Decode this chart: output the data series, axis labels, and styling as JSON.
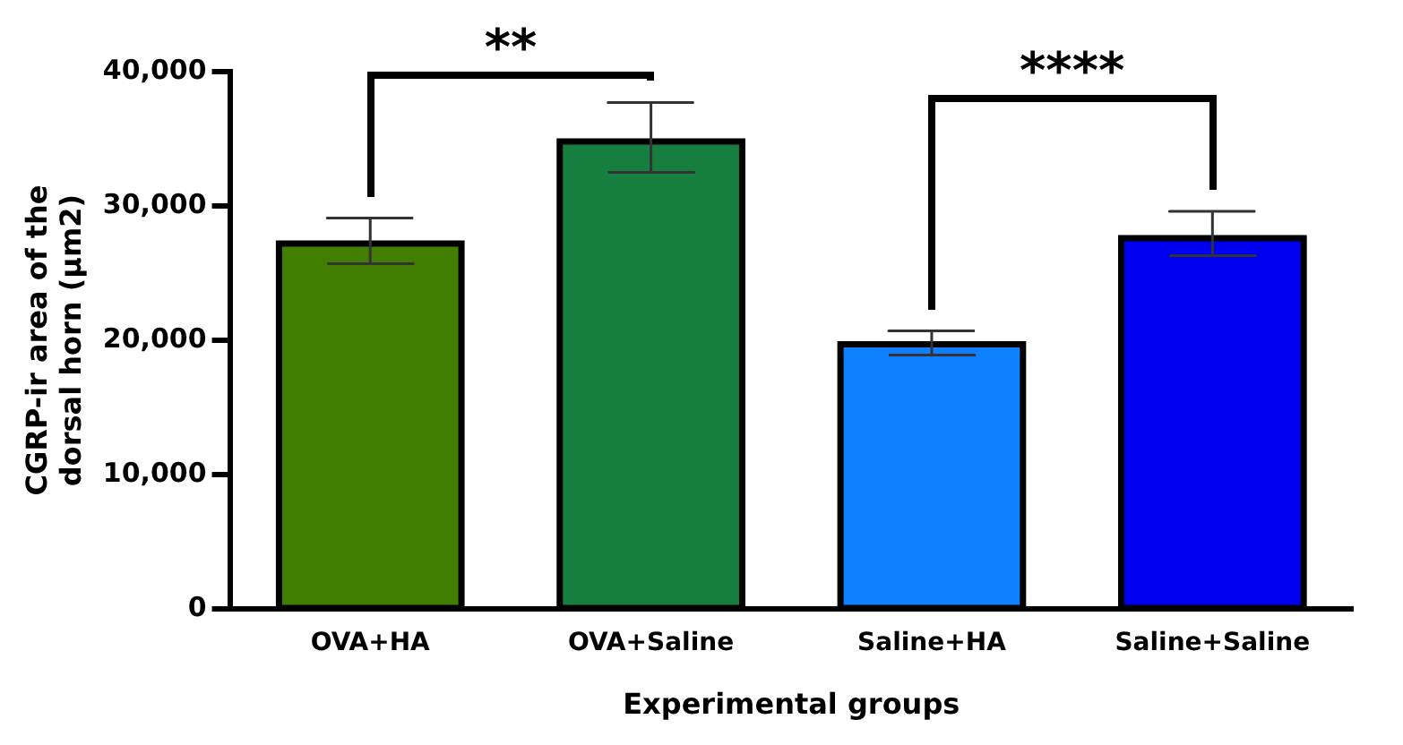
{
  "chart_data": {
    "type": "bar",
    "xlabel": "Experimental groups",
    "ylabel": "CGRP-ir area of the dorsal horn (μm2)",
    "categories": [
      "OVA+HA",
      "OVA+Saline",
      "Saline+HA",
      "Saline+Saline"
    ],
    "values": [
      27200,
      34800,
      19700,
      27600
    ],
    "colors": [
      "#417e02",
      "#167f40",
      "#0f80ff",
      "#0000f0"
    ],
    "errors": [
      [
        25700,
        29100
      ],
      [
        32500,
        37700
      ],
      [
        18900,
        20700
      ],
      [
        26300,
        29600
      ]
    ],
    "ylim": [
      0,
      40000
    ],
    "yticks": [
      0,
      {
        "value": 10000,
        "label": "10,000"
      },
      {
        "value": 20000,
        "label": "20,000"
      },
      {
        "value": 30000,
        "label": "30,000"
      },
      {
        "value": 40000,
        "label": "40,000"
      }
    ],
    "annotations": [
      "**",
      "****"
    ],
    "grid": false,
    "legend": false
  }
}
